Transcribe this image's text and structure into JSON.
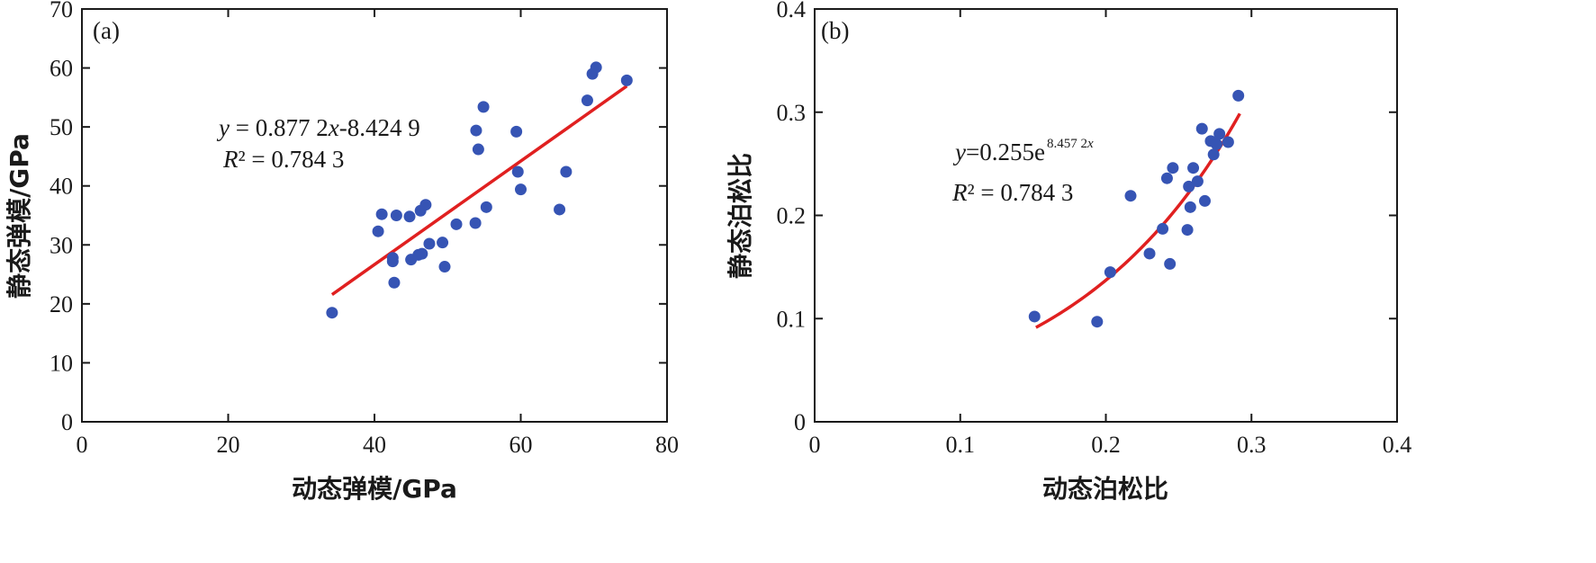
{
  "chart_data": [
    {
      "type": "scatter",
      "panel_label": "(a)",
      "xlabel": "动态弹模/GPa",
      "ylabel": "静态弹模/GPa",
      "xlim": [
        0,
        80
      ],
      "ylim": [
        0,
        70
      ],
      "x_ticks": [
        0,
        20,
        40,
        60,
        80
      ],
      "y_ticks": [
        0,
        10,
        20,
        30,
        40,
        50,
        60,
        70
      ],
      "x_tick_labels": [
        "0",
        "20",
        "40",
        "60",
        "80"
      ],
      "y_tick_labels": [
        "0",
        "10",
        "20",
        "30",
        "40",
        "50",
        "60",
        "70"
      ],
      "point_color": "#3654b4",
      "fit_color": "#e02020",
      "points": [
        [
          34.2,
          18.5
        ],
        [
          40.5,
          32.3
        ],
        [
          41.0,
          35.2
        ],
        [
          42.5,
          27.8
        ],
        [
          42.5,
          27.2
        ],
        [
          42.7,
          23.6
        ],
        [
          43.0,
          35.0
        ],
        [
          44.8,
          34.8
        ],
        [
          45.0,
          27.5
        ],
        [
          46.0,
          28.3
        ],
        [
          46.3,
          35.8
        ],
        [
          46.5,
          28.5
        ],
        [
          47.0,
          36.8
        ],
        [
          47.5,
          30.2
        ],
        [
          49.3,
          30.4
        ],
        [
          49.6,
          26.3
        ],
        [
          51.2,
          33.5
        ],
        [
          53.8,
          33.7
        ],
        [
          53.9,
          49.4
        ],
        [
          54.2,
          46.2
        ],
        [
          54.9,
          53.4
        ],
        [
          55.3,
          36.4
        ],
        [
          59.4,
          49.2
        ],
        [
          59.6,
          42.4
        ],
        [
          60.0,
          39.4
        ],
        [
          65.3,
          36.0
        ],
        [
          66.2,
          42.4
        ],
        [
          69.1,
          54.5
        ],
        [
          69.8,
          59.0
        ],
        [
          70.3,
          60.1
        ],
        [
          74.5,
          57.9
        ]
      ],
      "fit": {
        "kind": "linear",
        "slope": 0.8772,
        "intercept": -8.4249,
        "x_range": [
          34.2,
          74.5
        ]
      },
      "equation": {
        "var_y": "y",
        "equals_rhs_pre": " = 0.877 2",
        "var_x": "x",
        "equals_rhs_post": "-8.424 9",
        "r2_label": "R",
        "r2_rest": "² = 0.784 3"
      }
    },
    {
      "type": "scatter",
      "panel_label": "(b)",
      "xlabel": "动态泊松比",
      "ylabel": "静态泊松比",
      "xlim": [
        0,
        0.4
      ],
      "ylim": [
        0,
        0.4
      ],
      "x_ticks": [
        0,
        0.1,
        0.2,
        0.3,
        0.4
      ],
      "y_ticks": [
        0,
        0.1,
        0.2,
        0.3,
        0.4
      ],
      "x_tick_labels": [
        "0",
        "0.1",
        "0.2",
        "0.3",
        "0.4"
      ],
      "y_tick_labels": [
        "0",
        "0.1",
        "0.2",
        "0.3",
        "0.4"
      ],
      "point_color": "#3654b4",
      "fit_color": "#e02020",
      "points": [
        [
          0.151,
          0.102
        ],
        [
          0.194,
          0.097
        ],
        [
          0.203,
          0.145
        ],
        [
          0.217,
          0.219
        ],
        [
          0.23,
          0.163
        ],
        [
          0.239,
          0.187
        ],
        [
          0.242,
          0.236
        ],
        [
          0.244,
          0.153
        ],
        [
          0.246,
          0.246
        ],
        [
          0.256,
          0.186
        ],
        [
          0.257,
          0.228
        ],
        [
          0.258,
          0.208
        ],
        [
          0.26,
          0.246
        ],
        [
          0.263,
          0.233
        ],
        [
          0.266,
          0.284
        ],
        [
          0.268,
          0.214
        ],
        [
          0.272,
          0.272
        ],
        [
          0.274,
          0.259
        ],
        [
          0.276,
          0.269
        ],
        [
          0.278,
          0.279
        ],
        [
          0.284,
          0.271
        ],
        [
          0.291,
          0.316
        ]
      ],
      "fit": {
        "kind": "exponential",
        "a": 0.255,
        "b": 8.4572,
        "x_range": [
          0.152,
          0.292
        ]
      },
      "equation": {
        "var_y": "y",
        "equals_rhs_pre": "=0.255e",
        "exponent": "8.457 2",
        "exponent_var": "x",
        "r2_label": "R",
        "r2_rest": "² = 0.784 3"
      }
    }
  ]
}
